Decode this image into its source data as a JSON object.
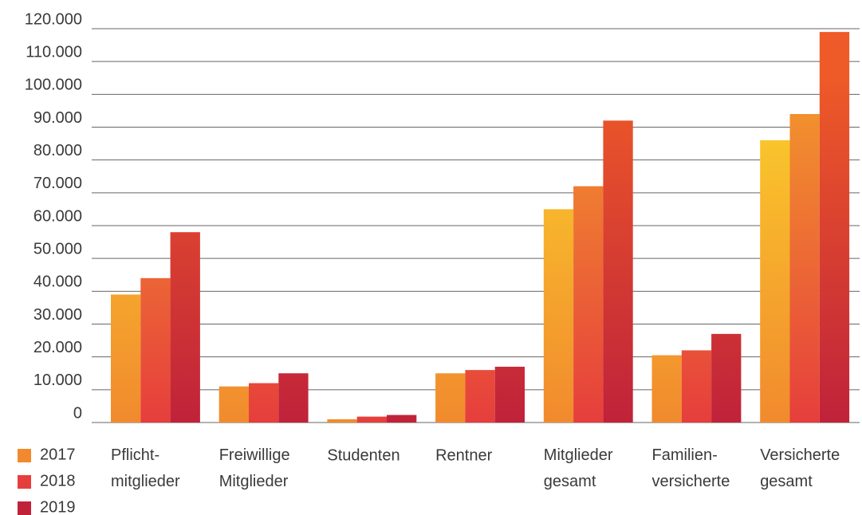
{
  "chart_data": {
    "type": "bar",
    "categories": [
      "Pflicht-\nmitglieder",
      "Freiwillige\nMitglieder",
      "Studenten",
      "Rentner",
      "Mitglieder\ngesamt",
      "Familien-\nversicherte",
      "Versicherte\ngesamt"
    ],
    "series": [
      {
        "name": "2017",
        "color": "#f4b02a",
        "gradient": [
          "#fbd12b",
          "#f18a2e"
        ],
        "values": [
          39000,
          11000,
          1000,
          15000,
          65000,
          20500,
          86000
        ]
      },
      {
        "name": "2018",
        "color": "#ec7a30",
        "gradient": [
          "#f39a2c",
          "#e63e3c"
        ],
        "values": [
          44000,
          12000,
          1800,
          16000,
          72000,
          22000,
          94000
        ]
      },
      {
        "name": "2019",
        "color": "#d9402f",
        "gradient": [
          "#ee5a28",
          "#c0223a"
        ],
        "values": [
          58000,
          15000,
          2300,
          17000,
          92000,
          27000,
          119000
        ]
      }
    ],
    "ylim": [
      0,
      120000
    ],
    "yticks": [
      0,
      {
        "value": 10000,
        "label": "10.000"
      },
      {
        "value": 20000,
        "label": "20.000"
      },
      {
        "value": 30000,
        "label": "30.000"
      },
      {
        "value": 40000,
        "label": "40.000"
      },
      {
        "value": 50000,
        "label": "50.000"
      },
      {
        "value": 60000,
        "label": "60.000"
      },
      {
        "value": 70000,
        "label": "70.000"
      },
      {
        "value": 80000,
        "label": "80.000"
      },
      {
        "value": 90000,
        "label": "90.000"
      },
      {
        "value": 100000,
        "label": "100.000"
      },
      {
        "value": 110000,
        "label": "110.000"
      },
      {
        "value": 120000,
        "label": "120.000"
      }
    ],
    "grid": true,
    "legend": "bottom-left"
  }
}
